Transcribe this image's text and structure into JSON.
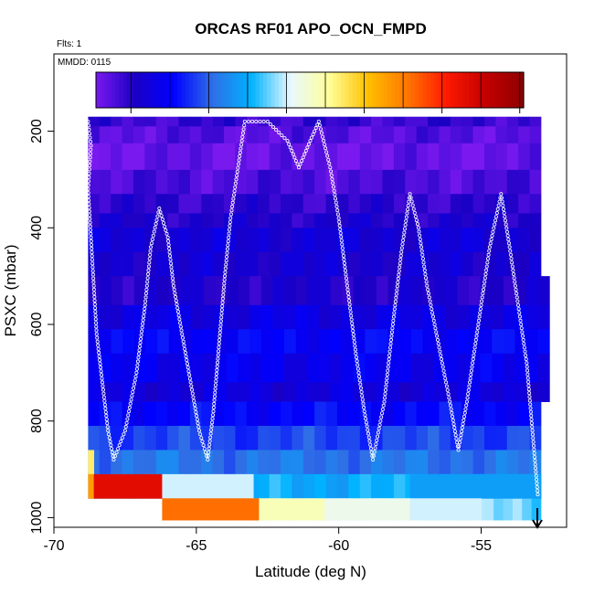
{
  "chart_data": {
    "type": "heatmap",
    "title": "ORCAS RF01 APO_OCN_FMPD",
    "annotations": {
      "flights": "Flts: 1",
      "date": "MMDD: 0115"
    },
    "xlabel": "Latitude (deg N)",
    "ylabel": "PSXC (mbar)",
    "xlim": [
      -70,
      -52
    ],
    "ylim": [
      1020,
      40
    ],
    "y_reversed": true,
    "x_ticks": [
      -70,
      -65,
      -60,
      -55
    ],
    "y_ticks": [
      200,
      400,
      600,
      800,
      1000
    ],
    "colorbar": {
      "min": -294.5,
      "max": -239.5,
      "ticks": [
        -290,
        -280,
        -270,
        -260,
        -250,
        -240
      ],
      "palette": [
        "#7a19ef",
        "#1a00c4",
        "#0000ff",
        "#2f6fe6",
        "#00b2ff",
        "#e8f8ff",
        "#ffff99",
        "#ffc000",
        "#ff7700",
        "#ff1a00",
        "#c40000",
        "#8e0000"
      ]
    },
    "grid": false,
    "layers": [
      {
        "p": [
          170,
          190
        ],
        "lat_ranges": [
          [
            -68.8,
            -52.9
          ]
        ],
        "value": -291.0
      },
      {
        "p": [
          190,
          225
        ],
        "lat_ranges": [
          [
            -68.8,
            -52.9
          ]
        ],
        "value": -292.5
      },
      {
        "p": [
          225,
          280
        ],
        "lat_ranges": [
          [
            -68.8,
            -52.9
          ]
        ],
        "value": -293.5
      },
      {
        "p": [
          280,
          330
        ],
        "lat_ranges": [
          [
            -68.8,
            -52.9
          ]
        ],
        "value": -292.0
      },
      {
        "p": [
          330,
          370
        ],
        "lat_ranges": [
          [
            -68.8,
            -52.9
          ]
        ],
        "value": -290.5
      },
      {
        "p": [
          370,
          400
        ],
        "lat_ranges": [
          [
            -68.8,
            -52.9
          ]
        ],
        "value": -289.5
      },
      {
        "p": [
          400,
          450
        ],
        "lat_ranges": [
          [
            -68.8,
            -52.9
          ]
        ],
        "value": -288.0
      },
      {
        "p": [
          450,
          500
        ],
        "lat_ranges": [
          [
            -68.8,
            -52.9
          ]
        ],
        "value": -288.5
      },
      {
        "p": [
          500,
          560
        ],
        "lat_ranges": [
          [
            -68.8,
            -52.6
          ]
        ],
        "value": -289.5
      },
      {
        "p": [
          560,
          610
        ],
        "lat_ranges": [
          [
            -68.8,
            -52.6
          ]
        ],
        "value": -287.0
      },
      {
        "p": [
          610,
          660
        ],
        "lat_ranges": [
          [
            -68.8,
            -52.6
          ]
        ],
        "value": -285.0
      },
      {
        "p": [
          660,
          720
        ],
        "lat_ranges": [
          [
            -68.8,
            -52.6
          ]
        ],
        "value": -286.0
      },
      {
        "p": [
          720,
          760
        ],
        "lat_ranges": [
          [
            -68.8,
            -52.6
          ]
        ],
        "value": -287.5
      },
      {
        "p": [
          760,
          810
        ],
        "lat_ranges": [
          [
            -68.8,
            -52.9
          ]
        ],
        "value": -284.5
      },
      {
        "p": [
          810,
          860
        ],
        "lat_ranges": [
          [
            -68.8,
            -52.9
          ]
        ],
        "value": -281.5
      },
      {
        "p": [
          860,
          910
        ],
        "lat_ranges": [
          [
            -68.8,
            -52.9
          ]
        ],
        "value": -279.0
      },
      {
        "p": [
          910,
          960
        ],
        "lat_ranges": [
          [
            -68.8,
            -52.9
          ]
        ],
        "value": -275.0
      },
      {
        "p": [
          960,
          1005
        ],
        "lat_ranges": [
          [
            -66.2,
            -52.9
          ]
        ],
        "value": -272.0
      }
    ],
    "cells": [
      {
        "p": [
          860,
          910
        ],
        "lat": [
          -68.8,
          -68.6
        ],
        "value": -263.0
      },
      {
        "p": [
          910,
          960
        ],
        "lat": [
          -68.8,
          -68.6
        ],
        "value": -257.0
      },
      {
        "p": [
          910,
          960
        ],
        "lat": [
          -68.6,
          -66.2
        ],
        "value": -247.0
      },
      {
        "p": [
          910,
          960
        ],
        "lat": [
          -66.2,
          -63.0
        ],
        "value": -270.0
      },
      {
        "p": [
          910,
          960
        ],
        "lat": [
          -57.5,
          -52.9
        ],
        "value": -276.0
      },
      {
        "p": [
          960,
          1005
        ],
        "lat": [
          -66.2,
          -62.8
        ],
        "value": -254.0
      },
      {
        "p": [
          960,
          1005
        ],
        "lat": [
          -62.8,
          -60.5
        ],
        "value": -266.0
      },
      {
        "p": [
          960,
          1005
        ],
        "lat": [
          -60.5,
          -57.5
        ],
        "value": -268.5
      },
      {
        "p": [
          960,
          1005
        ],
        "lat": [
          -57.5,
          -55.0
        ],
        "value": -270.0
      }
    ],
    "flight_track": [
      [
        -68.8,
        180
      ],
      [
        -68.7,
        230
      ],
      [
        -68.8,
        320
      ],
      [
        -68.7,
        420
      ],
      [
        -68.6,
        520
      ],
      [
        -68.5,
        620
      ],
      [
        -68.3,
        720
      ],
      [
        -68.1,
        820
      ],
      [
        -67.9,
        880
      ],
      [
        -67.5,
        820
      ],
      [
        -67.1,
        700
      ],
      [
        -66.8,
        560
      ],
      [
        -66.6,
        440
      ],
      [
        -66.3,
        360
      ],
      [
        -66.0,
        420
      ],
      [
        -65.8,
        520
      ],
      [
        -65.5,
        620
      ],
      [
        -65.2,
        720
      ],
      [
        -64.9,
        820
      ],
      [
        -64.6,
        880
      ],
      [
        -64.4,
        780
      ],
      [
        -64.2,
        640
      ],
      [
        -64.0,
        500
      ],
      [
        -63.8,
        380
      ],
      [
        -63.3,
        180
      ],
      [
        -62.5,
        180
      ],
      [
        -61.8,
        220
      ],
      [
        -61.4,
        275
      ],
      [
        -61.0,
        220
      ],
      [
        -60.7,
        180
      ],
      [
        -60.3,
        275
      ],
      [
        -60.0,
        380
      ],
      [
        -59.7,
        520
      ],
      [
        -59.4,
        660
      ],
      [
        -59.1,
        780
      ],
      [
        -58.8,
        880
      ],
      [
        -58.4,
        760
      ],
      [
        -58.1,
        600
      ],
      [
        -57.8,
        450
      ],
      [
        -57.5,
        330
      ],
      [
        -57.2,
        400
      ],
      [
        -56.9,
        520
      ],
      [
        -56.5,
        640
      ],
      [
        -56.1,
        760
      ],
      [
        -55.8,
        860
      ],
      [
        -55.5,
        760
      ],
      [
        -55.1,
        600
      ],
      [
        -54.7,
        440
      ],
      [
        -54.3,
        330
      ],
      [
        -54.0,
        440
      ],
      [
        -53.7,
        560
      ],
      [
        -53.4,
        680
      ],
      [
        -53.2,
        820
      ],
      [
        -53.0,
        960
      ]
    ]
  }
}
